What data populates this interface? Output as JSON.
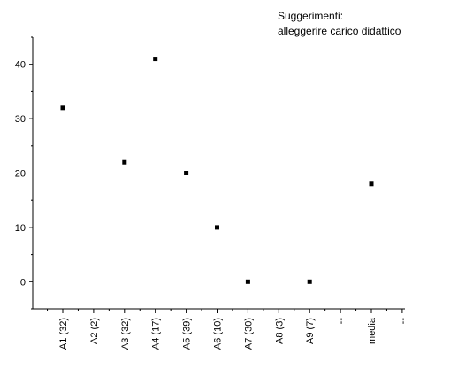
{
  "chart_data": {
    "type": "scatter",
    "title": "",
    "xlabel": "",
    "ylabel": "",
    "annotation": [
      "Suggerimenti:",
      "alleggerire carico didattico"
    ],
    "categories": [
      "A1 (32)",
      "A2 (2)",
      "A3 (32)",
      "A4 (17)",
      "A5 (39)",
      "A6 (10)",
      "A7 (30)",
      "A8 (3)",
      "A9 (7)",
      "--",
      "media",
      "--"
    ],
    "values": [
      32,
      null,
      22,
      41,
      20,
      10,
      0,
      null,
      0,
      null,
      18,
      null
    ],
    "ylim": [
      -5,
      45
    ],
    "yticks": [
      0,
      10,
      20,
      30,
      40
    ],
    "grid": false,
    "legend": "none",
    "marker_color": "#000000"
  }
}
